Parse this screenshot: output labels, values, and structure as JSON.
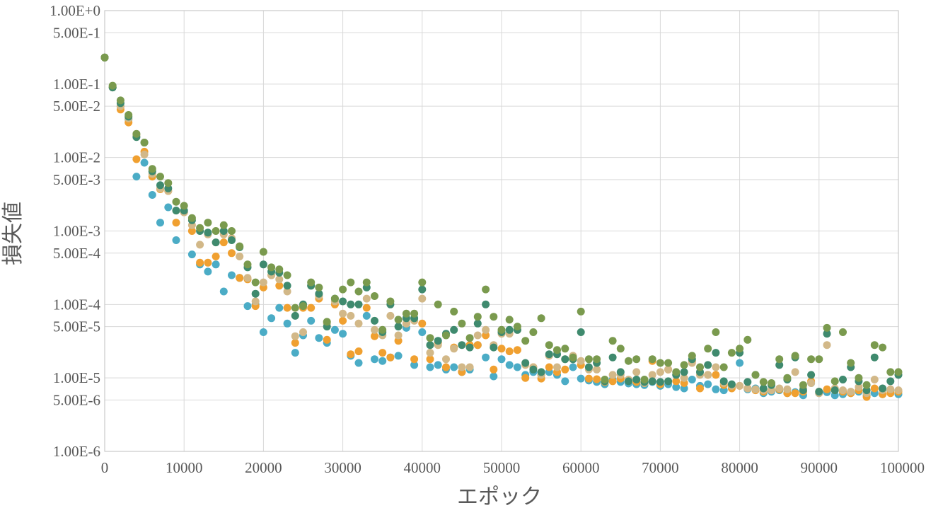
{
  "colors": {
    "series_a": "#4bacc6",
    "series_b": "#f0a030",
    "series_c": "#d2b888",
    "series_d": "#3f8a6e",
    "series_e": "#7a9a4e",
    "grid": "#d9d9d9",
    "text": "#595959"
  },
  "chart_data": {
    "type": "scatter",
    "title": "",
    "xlabel": "エポック",
    "ylabel": "損失値",
    "xlim": [
      0,
      100000
    ],
    "ylim": [
      1e-06,
      1
    ],
    "yscale": "log",
    "grid": true,
    "legend": "none",
    "x_ticks": [
      0,
      10000,
      20000,
      30000,
      40000,
      50000,
      60000,
      70000,
      80000,
      90000,
      100000
    ],
    "x_tick_labels": [
      "0",
      "10000",
      "20000",
      "30000",
      "40000",
      "50000",
      "60000",
      "70000",
      "80000",
      "90000",
      "100000"
    ],
    "y_ticks": [
      1,
      0.5,
      0.1,
      0.05,
      0.01,
      0.005,
      0.001,
      0.0005,
      0.0001,
      5e-05,
      1e-05,
      5e-06,
      1e-06
    ],
    "y_tick_labels": [
      "1.00E+0",
      "5.00E-1",
      "1.00E-1",
      "5.00E-2",
      "1.00E-2",
      "5.00E-3",
      "1.00E-3",
      "5.00E-4",
      "1.00E-4",
      "5.00E-5",
      "1.00E-5",
      "5.00E-6",
      "1.00E-6"
    ],
    "series": [
      {
        "color_key": "series_a",
        "x": [
          0,
          1000,
          2000,
          3000,
          4000,
          5000,
          6000,
          7000,
          8000,
          9000,
          10000,
          11000,
          12000,
          13000,
          14000,
          15000,
          16000,
          17000,
          18000,
          19000,
          20000,
          21000,
          22000,
          23000,
          24000,
          25000,
          26000,
          27000,
          28000,
          29000,
          30000,
          31000,
          32000,
          33000,
          34000,
          35000,
          36000,
          37000,
          38000,
          39000,
          40000,
          41000,
          42000,
          43000,
          44000,
          45000,
          46000,
          47000,
          48000,
          49000,
          50000,
          51000,
          52000,
          53000,
          54000,
          55000,
          56000,
          57000,
          58000,
          59000,
          60000,
          61000,
          62000,
          63000,
          64000,
          65000,
          66000,
          67000,
          68000,
          69000,
          70000,
          71000,
          72000,
          73000,
          74000,
          75000,
          76000,
          77000,
          78000,
          79000,
          80000,
          81000,
          82000,
          83000,
          84000,
          85000,
          86000,
          87000,
          88000,
          89000,
          90000,
          91000,
          92000,
          93000,
          94000,
          95000,
          96000,
          97000,
          98000,
          99000,
          100000
        ],
        "y": [
          0.23,
          0.09,
          0.05,
          0.033,
          0.0055,
          0.0085,
          0.0031,
          0.0013,
          0.0021,
          0.00075,
          0.0018,
          0.00048,
          0.00035,
          0.00028,
          0.00035,
          0.00015,
          0.00025,
          0.00023,
          9.5e-05,
          0.0001,
          4.2e-05,
          6.5e-05,
          9e-05,
          5.5e-05,
          2.2e-05,
          3.8e-05,
          6e-05,
          3.5e-05,
          3e-05,
          4.5e-05,
          4e-05,
          2e-05,
          1.6e-05,
          7e-05,
          1.8e-05,
          1.7e-05,
          1.9e-05,
          2e-05,
          4.8e-05,
          1.5e-05,
          4.2e-05,
          1.4e-05,
          1.5e-05,
          1.3e-05,
          1.4e-05,
          1.2e-05,
          1.3e-05,
          2.8e-05,
          1.9e-05,
          1.05e-05,
          1.8e-05,
          1.5e-05,
          1.4e-05,
          1.1e-05,
          1.2e-05,
          1.1e-05,
          1.2e-05,
          1.1e-05,
          9e-06,
          1.4e-05,
          9.8e-06,
          9.2e-06,
          8.8e-06,
          8.2e-06,
          9.5e-06,
          8.8e-06,
          8.4e-06,
          8.2e-06,
          8e-06,
          8.8e-06,
          7.8e-06,
          8.2e-06,
          7.5e-06,
          7.2e-06,
          9.5e-06,
          7.8e-06,
          8.2e-06,
          7e-06,
          6.8e-06,
          7.5e-06,
          1.6e-05,
          7e-06,
          7.2e-06,
          6.2e-06,
          6.5e-06,
          6.8e-06,
          6.2e-06,
          6.4e-06,
          5.8e-06,
          8.5e-06,
          6.2e-06,
          6.4e-06,
          5.8e-06,
          6e-06,
          6.2e-06,
          6.5e-06,
          5.8e-06,
          6.2e-06,
          6e-06,
          6.8e-06,
          6e-06
        ]
      },
      {
        "color_key": "series_b",
        "x": [
          0,
          1000,
          2000,
          3000,
          4000,
          5000,
          6000,
          7000,
          8000,
          9000,
          10000,
          11000,
          12000,
          13000,
          14000,
          15000,
          16000,
          17000,
          18000,
          19000,
          20000,
          21000,
          22000,
          23000,
          24000,
          25000,
          26000,
          27000,
          28000,
          29000,
          30000,
          31000,
          32000,
          33000,
          34000,
          35000,
          36000,
          37000,
          38000,
          39000,
          40000,
          41000,
          42000,
          43000,
          44000,
          45000,
          46000,
          47000,
          48000,
          49000,
          50000,
          51000,
          52000,
          53000,
          54000,
          55000,
          56000,
          57000,
          58000,
          59000,
          60000,
          61000,
          62000,
          63000,
          64000,
          65000,
          66000,
          67000,
          68000,
          69000,
          70000,
          71000,
          72000,
          73000,
          74000,
          75000,
          76000,
          77000,
          78000,
          79000,
          80000,
          81000,
          82000,
          83000,
          84000,
          85000,
          86000,
          87000,
          88000,
          89000,
          90000,
          91000,
          92000,
          93000,
          94000,
          95000,
          96000,
          97000,
          98000,
          99000,
          100000
        ],
        "y": [
          0.23,
          0.09,
          0.045,
          0.03,
          0.0095,
          0.012,
          0.0055,
          0.0037,
          0.0035,
          0.0013,
          0.0018,
          0.001,
          0.00037,
          0.00037,
          0.00045,
          0.0007,
          0.0005,
          0.00023,
          0.00022,
          9.5e-05,
          0.00017,
          0.00025,
          0.00018,
          9e-05,
          3e-05,
          9e-05,
          9e-05,
          0.00012,
          3.3e-05,
          0.0001,
          6e-05,
          2.1e-05,
          2.3e-05,
          9e-05,
          3.7e-05,
          2.2e-05,
          1.9e-05,
          3.2e-05,
          5.5e-05,
          1.8e-05,
          5.5e-05,
          1.8e-05,
          3e-05,
          1.4e-05,
          2.6e-05,
          1.2e-05,
          2.8e-05,
          2.8e-05,
          3.8e-05,
          1.3e-05,
          2.5e-05,
          2.3e-05,
          2.4e-05,
          1e-05,
          1.4e-05,
          9.8e-06,
          1.4e-05,
          1.2e-05,
          1.3e-05,
          1.8e-05,
          1.5e-05,
          9.8e-06,
          9.6e-06,
          8.8e-06,
          9e-06,
          9.8e-06,
          9.2e-06,
          8.8e-06,
          8.5e-06,
          1.7e-05,
          8.2e-06,
          1.3e-05,
          9e-06,
          8.5e-06,
          1.7e-05,
          7.2e-06,
          1.1e-05,
          1.1e-05,
          8e-06,
          7.2e-06,
          7.8e-06,
          7.2e-06,
          6.8e-06,
          6.5e-06,
          6.8e-06,
          7e-06,
          6.2e-06,
          6.2e-06,
          6.5e-06,
          9e-06,
          6.5e-06,
          7e-06,
          6.8e-06,
          6.5e-06,
          6.2e-06,
          6.8e-06,
          5.5e-06,
          7.2e-06,
          6e-06,
          6.2e-06,
          6.5e-06
        ]
      },
      {
        "color_key": "series_c",
        "x": [
          0,
          1000,
          2000,
          3000,
          4000,
          5000,
          6000,
          7000,
          8000,
          9000,
          10000,
          11000,
          12000,
          13000,
          14000,
          15000,
          16000,
          17000,
          18000,
          19000,
          20000,
          21000,
          22000,
          23000,
          24000,
          25000,
          26000,
          27000,
          28000,
          29000,
          30000,
          31000,
          32000,
          33000,
          34000,
          35000,
          36000,
          37000,
          38000,
          39000,
          40000,
          41000,
          42000,
          43000,
          44000,
          45000,
          46000,
          47000,
          48000,
          49000,
          50000,
          51000,
          52000,
          53000,
          54000,
          55000,
          56000,
          57000,
          58000,
          59000,
          60000,
          61000,
          62000,
          63000,
          64000,
          65000,
          66000,
          67000,
          68000,
          69000,
          70000,
          71000,
          72000,
          73000,
          74000,
          75000,
          76000,
          77000,
          78000,
          79000,
          80000,
          81000,
          82000,
          83000,
          84000,
          85000,
          86000,
          87000,
          88000,
          89000,
          90000,
          91000,
          92000,
          93000,
          94000,
          95000,
          96000,
          97000,
          98000,
          99000,
          100000
        ],
        "y": [
          0.23,
          0.09,
          0.05,
          0.034,
          0.02,
          0.011,
          0.006,
          0.0038,
          0.0035,
          0.0019,
          0.0018,
          0.0012,
          0.00065,
          0.0009,
          0.0007,
          0.0009,
          0.0008,
          0.00045,
          0.00023,
          0.00011,
          0.0002,
          0.00025,
          0.00022,
          0.00015,
          3.7e-05,
          4.2e-05,
          0.00018,
          0.00013,
          5.5e-05,
          0.00011,
          7.5e-05,
          7e-05,
          5.5e-05,
          0.00012,
          4.5e-05,
          3.8e-05,
          7e-05,
          3.8e-05,
          5.5e-05,
          6e-05,
          0.00012,
          2.2e-05,
          2.8e-05,
          1.8e-05,
          2.5e-05,
          1.4e-05,
          1.4e-05,
          3.8e-05,
          4.5e-05,
          2.8e-05,
          4e-05,
          4e-05,
          4.5e-05,
          1.5e-05,
          1.4e-05,
          1.1e-05,
          2e-05,
          1.4e-05,
          1.8e-05,
          2e-05,
          1.7e-05,
          1.3e-05,
          1.3e-05,
          9e-06,
          1.1e-05,
          1.1e-05,
          9.5e-06,
          1.2e-05,
          8.5e-06,
          1.1e-05,
          1.2e-05,
          1.3e-05,
          1.1e-05,
          1e-05,
          1.6e-05,
          1.1e-05,
          1.1e-05,
          1.4e-05,
          8.5e-06,
          7.8e-06,
          7.8e-06,
          7.2e-06,
          7e-06,
          6.8e-06,
          6.8e-06,
          7.2e-06,
          7e-06,
          1.2e-05,
          7.2e-06,
          8.5e-06,
          6.2e-06,
          2.8e-05,
          7.2e-06,
          6.8e-06,
          6.5e-06,
          7.5e-06,
          6.2e-06,
          9.5e-06,
          6.8e-06,
          7e-06,
          6.8e-06
        ]
      },
      {
        "color_key": "series_d",
        "x": [
          0,
          1000,
          2000,
          3000,
          4000,
          5000,
          6000,
          7000,
          8000,
          9000,
          10000,
          11000,
          12000,
          13000,
          14000,
          15000,
          16000,
          17000,
          18000,
          19000,
          20000,
          21000,
          22000,
          23000,
          24000,
          25000,
          26000,
          27000,
          28000,
          29000,
          30000,
          31000,
          32000,
          33000,
          34000,
          35000,
          36000,
          37000,
          38000,
          39000,
          40000,
          41000,
          42000,
          43000,
          44000,
          45000,
          46000,
          47000,
          48000,
          49000,
          50000,
          51000,
          52000,
          53000,
          54000,
          55000,
          56000,
          57000,
          58000,
          59000,
          60000,
          61000,
          62000,
          63000,
          64000,
          65000,
          66000,
          67000,
          68000,
          69000,
          70000,
          71000,
          72000,
          73000,
          74000,
          75000,
          76000,
          77000,
          78000,
          79000,
          80000,
          81000,
          82000,
          83000,
          84000,
          85000,
          86000,
          87000,
          88000,
          89000,
          90000,
          91000,
          92000,
          93000,
          94000,
          95000,
          96000,
          97000,
          98000,
          99000,
          100000
        ],
        "y": [
          0.23,
          0.09,
          0.055,
          0.036,
          0.019,
          0.016,
          0.0065,
          0.0042,
          0.0038,
          0.0019,
          0.0019,
          0.0014,
          0.001,
          0.00095,
          0.0007,
          0.001,
          0.00075,
          0.0006,
          0.00032,
          0.00014,
          0.00035,
          0.00028,
          0.00027,
          0.00018,
          7e-05,
          0.0001,
          0.00018,
          0.00014,
          5e-05,
          0.00012,
          0.00011,
          0.0001,
          0.0001,
          0.00017,
          6e-05,
          4.2e-05,
          0.0001,
          5e-05,
          6.5e-05,
          6.5e-05,
          0.00016,
          2.8e-05,
          3.2e-05,
          4e-05,
          4.5e-05,
          2.8e-05,
          2.6e-05,
          5.5e-05,
          0.0001,
          2.6e-05,
          4.2e-05,
          4.5e-05,
          4.5e-05,
          1.6e-05,
          1.3e-05,
          1.2e-05,
          2.1e-05,
          2.1e-05,
          1.8e-05,
          1.8e-05,
          4.2e-05,
          1.4e-05,
          1.6e-05,
          9e-06,
          1.9e-05,
          1.2e-05,
          9e-06,
          9.5e-06,
          8.8e-06,
          9e-06,
          8.8e-06,
          9e-06,
          1.1e-05,
          1.2e-05,
          1.8e-05,
          1.2e-05,
          1.5e-05,
          2.2e-05,
          9e-06,
          8.2e-06,
          2.2e-05,
          8.8e-06,
          1.1e-05,
          7.2e-06,
          8e-06,
          1.5e-05,
          9.5e-06,
          1.9e-05,
          6.8e-06,
          1.1e-05,
          6.5e-06,
          4e-05,
          6.8e-06,
          9.5e-06,
          1.4e-05,
          9e-06,
          6.8e-06,
          1.9e-05,
          7.2e-06,
          9e-06,
          1.1e-05
        ]
      },
      {
        "color_key": "series_e",
        "x": [
          0,
          1000,
          2000,
          3000,
          4000,
          5000,
          6000,
          7000,
          8000,
          9000,
          10000,
          11000,
          12000,
          13000,
          14000,
          15000,
          16000,
          17000,
          18000,
          19000,
          20000,
          21000,
          22000,
          23000,
          24000,
          25000,
          26000,
          27000,
          28000,
          29000,
          30000,
          31000,
          32000,
          33000,
          34000,
          35000,
          36000,
          37000,
          38000,
          39000,
          40000,
          41000,
          42000,
          43000,
          44000,
          45000,
          46000,
          47000,
          48000,
          49000,
          50000,
          51000,
          52000,
          53000,
          54000,
          55000,
          56000,
          57000,
          58000,
          59000,
          60000,
          61000,
          62000,
          63000,
          64000,
          65000,
          66000,
          67000,
          68000,
          69000,
          70000,
          71000,
          72000,
          73000,
          74000,
          75000,
          76000,
          77000,
          78000,
          79000,
          80000,
          81000,
          82000,
          83000,
          84000,
          85000,
          86000,
          87000,
          88000,
          89000,
          90000,
          91000,
          92000,
          93000,
          94000,
          95000,
          96000,
          97000,
          98000,
          99000,
          100000
        ],
        "y": [
          0.23,
          0.095,
          0.06,
          0.038,
          0.021,
          0.016,
          0.007,
          0.0055,
          0.0045,
          0.0025,
          0.0022,
          0.0015,
          0.0011,
          0.0013,
          0.001,
          0.0012,
          0.001,
          0.00062,
          0.00035,
          0.0002,
          0.00052,
          0.00032,
          0.0003,
          0.00025,
          9e-05,
          9.5e-05,
          0.0002,
          0.00017,
          5.8e-05,
          0.00012,
          0.00016,
          0.0002,
          0.00015,
          0.0002,
          0.00013,
          4.5e-05,
          0.00011,
          6.2e-05,
          7.5e-05,
          7.5e-05,
          0.0002,
          3.5e-05,
          0.0001,
          3.8e-05,
          8e-05,
          5.5e-05,
          3.5e-05,
          6.8e-05,
          0.00016,
          6.8e-05,
          4.5e-05,
          6.2e-05,
          5e-05,
          3.2e-05,
          4.2e-05,
          6.5e-05,
          2.8e-05,
          2.4e-05,
          2.5e-05,
          1.9e-05,
          8e-05,
          1.8e-05,
          1.8e-05,
          9.5e-06,
          3.2e-05,
          2.5e-05,
          1.7e-05,
          1.8e-05,
          9.5e-06,
          1.8e-05,
          1.6e-05,
          1.6e-05,
          1.2e-05,
          1.5e-05,
          2e-05,
          1.4e-05,
          2.5e-05,
          4.2e-05,
          1.4e-05,
          2.2e-05,
          2.5e-05,
          3.3e-05,
          1.1e-05,
          8.8e-06,
          8.5e-06,
          1.8e-05,
          1e-05,
          2e-05,
          8e-06,
          1.8e-05,
          1.8e-05,
          4.8e-05,
          9e-06,
          4.2e-05,
          1.6e-05,
          1e-05,
          8e-06,
          2.8e-05,
          2.6e-05,
          1.2e-05,
          1.2e-05
        ]
      }
    ]
  }
}
